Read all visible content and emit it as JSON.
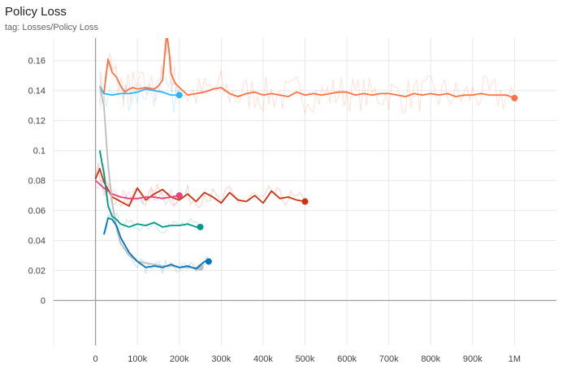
{
  "header": {
    "title": "Policy Loss",
    "subtitle": "tag: Losses/Policy Loss"
  },
  "chart_data": {
    "type": "line",
    "title": "Policy Loss",
    "subtitle": "tag: Losses/Policy Loss",
    "xlabel": "",
    "ylabel": "",
    "xlim": [
      -100000,
      1100000
    ],
    "ylim": [
      -0.03,
      0.175
    ],
    "x_ticks": [
      0,
      100000,
      200000,
      300000,
      400000,
      500000,
      600000,
      700000,
      800000,
      900000,
      1000000
    ],
    "x_tick_labels": [
      "0",
      "100k",
      "200k",
      "300k",
      "400k",
      "500k",
      "600k",
      "700k",
      "800k",
      "900k",
      "1M"
    ],
    "y_ticks": [
      0,
      0.02,
      0.04,
      0.06,
      0.08,
      0.1,
      0.12,
      0.14,
      0.16
    ],
    "y_tick_labels": [
      "0",
      "0.02",
      "0.04",
      "0.06",
      "0.08",
      "0.1",
      "0.12",
      "0.14",
      "0.16"
    ],
    "grid": true,
    "legend": "none",
    "series": [
      {
        "color": "#ff7043",
        "x": [
          10000,
          20000,
          30000,
          40000,
          50000,
          60000,
          70000,
          80000,
          90000,
          100000,
          120000,
          140000,
          150000,
          160000,
          170000,
          175000,
          180000,
          185000,
          190000,
          200000,
          220000,
          240000,
          260000,
          280000,
          300000,
          320000,
          340000,
          360000,
          380000,
          400000,
          420000,
          440000,
          460000,
          480000,
          500000,
          520000,
          540000,
          560000,
          580000,
          600000,
          620000,
          640000,
          660000,
          680000,
          700000,
          720000,
          740000,
          760000,
          780000,
          800000,
          820000,
          840000,
          860000,
          880000,
          900000,
          920000,
          940000,
          960000,
          980000,
          1000000
        ],
        "y": [
          0.143,
          0.138,
          0.161,
          0.152,
          0.149,
          0.143,
          0.139,
          0.141,
          0.142,
          0.141,
          0.142,
          0.141,
          0.143,
          0.147,
          0.178,
          0.168,
          0.152,
          0.148,
          0.145,
          0.142,
          0.137,
          0.138,
          0.139,
          0.141,
          0.142,
          0.138,
          0.136,
          0.138,
          0.139,
          0.137,
          0.138,
          0.137,
          0.136,
          0.139,
          0.137,
          0.138,
          0.137,
          0.138,
          0.139,
          0.139,
          0.137,
          0.138,
          0.137,
          0.138,
          0.138,
          0.137,
          0.136,
          0.138,
          0.137,
          0.138,
          0.137,
          0.138,
          0.136,
          0.137,
          0.137,
          0.138,
          0.137,
          0.137,
          0.137,
          0.135
        ]
      },
      {
        "color": "#29b6f6",
        "x": [
          10000,
          20000,
          40000,
          60000,
          80000,
          100000,
          120000,
          140000,
          160000,
          180000,
          200000
        ],
        "y": [
          0.143,
          0.138,
          0.137,
          0.138,
          0.138,
          0.139,
          0.141,
          0.14,
          0.139,
          0.137,
          0.137
        ]
      },
      {
        "color": "#cc3311",
        "x": [
          0,
          10000,
          20000,
          30000,
          40000,
          60000,
          80000,
          100000,
          120000,
          140000,
          160000,
          180000,
          200000,
          220000,
          240000,
          260000,
          280000,
          300000,
          320000,
          340000,
          360000,
          380000,
          400000,
          420000,
          440000,
          460000,
          480000,
          500000
        ],
        "y": [
          0.081,
          0.088,
          0.079,
          0.074,
          0.069,
          0.066,
          0.063,
          0.075,
          0.067,
          0.071,
          0.074,
          0.069,
          0.067,
          0.071,
          0.066,
          0.072,
          0.069,
          0.065,
          0.072,
          0.067,
          0.066,
          0.07,
          0.065,
          0.073,
          0.068,
          0.069,
          0.067,
          0.066
        ]
      },
      {
        "color": "#ec407a",
        "x": [
          0,
          20000,
          40000,
          60000,
          80000,
          100000,
          120000,
          140000,
          160000,
          180000,
          200000
        ],
        "y": [
          0.08,
          0.075,
          0.071,
          0.069,
          0.068,
          0.068,
          0.069,
          0.069,
          0.068,
          0.069,
          0.07
        ]
      },
      {
        "color": "#bdbdbd",
        "x": [
          10000,
          20000,
          30000,
          40000,
          50000,
          60000,
          80000,
          100000,
          120000,
          140000,
          160000,
          180000,
          200000,
          220000,
          240000,
          250000
        ],
        "y": [
          0.143,
          0.13,
          0.09,
          0.065,
          0.048,
          0.038,
          0.03,
          0.026,
          0.025,
          0.024,
          0.023,
          0.023,
          0.022,
          0.022,
          0.022,
          0.022
        ]
      },
      {
        "color": "#009988",
        "x": [
          10000,
          20000,
          30000,
          40000,
          50000,
          60000,
          80000,
          100000,
          120000,
          140000,
          160000,
          180000,
          200000,
          220000,
          240000,
          250000
        ],
        "y": [
          0.1,
          0.085,
          0.063,
          0.056,
          0.054,
          0.051,
          0.049,
          0.051,
          0.05,
          0.052,
          0.049,
          0.05,
          0.05,
          0.051,
          0.049,
          0.049
        ]
      },
      {
        "color": "#0077bb",
        "x": [
          20000,
          30000,
          40000,
          50000,
          60000,
          80000,
          100000,
          120000,
          140000,
          160000,
          180000,
          200000,
          220000,
          240000,
          260000,
          270000
        ],
        "y": [
          0.044,
          0.055,
          0.054,
          0.05,
          0.042,
          0.032,
          0.026,
          0.022,
          0.023,
          0.022,
          0.024,
          0.022,
          0.023,
          0.021,
          0.026,
          0.026
        ]
      }
    ]
  }
}
